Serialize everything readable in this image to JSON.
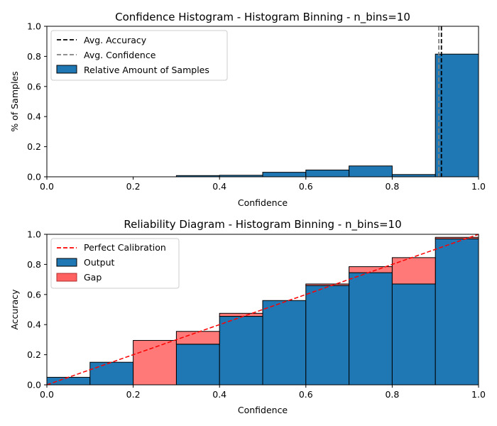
{
  "chart_data": [
    {
      "type": "bar",
      "title": "Confidence Histogram - Histogram Binning - n_bins=10",
      "xlabel": "Confidence",
      "ylabel": "% of Samples",
      "xlim": [
        0,
        1
      ],
      "ylim": [
        0,
        1
      ],
      "xticks": [
        "0.0",
        "0.2",
        "0.4",
        "0.6",
        "0.8",
        "1.0"
      ],
      "yticks": [
        "0.0",
        "0.2",
        "0.4",
        "0.6",
        "0.8",
        "1.0"
      ],
      "legend_position": "top-left",
      "bin_edges": [
        0.0,
        0.1,
        0.2,
        0.3,
        0.4,
        0.5,
        0.6,
        0.7,
        0.8,
        0.9,
        1.0
      ],
      "series": [
        {
          "name": "Relative Amount of Samples",
          "color": "#1f77b4",
          "values": [
            0.0,
            0.0,
            0.0,
            0.008,
            0.01,
            0.03,
            0.045,
            0.072,
            0.015,
            0.815
          ]
        }
      ],
      "vlines": [
        {
          "name": "Avg. Accuracy",
          "x": 0.914,
          "color": "#000000",
          "style": "dashed"
        },
        {
          "name": "Avg. Confidence",
          "x": 0.908,
          "color": "#808080",
          "style": "dashed"
        }
      ]
    },
    {
      "type": "bar",
      "title": "Reliability Diagram - Histogram Binning - n_bins=10",
      "xlabel": "Confidence",
      "ylabel": "Accuracy",
      "xlim": [
        0,
        1
      ],
      "ylim": [
        0,
        1
      ],
      "xticks": [
        "0.0",
        "0.2",
        "0.4",
        "0.6",
        "0.8",
        "1.0"
      ],
      "yticks": [
        "0.0",
        "0.2",
        "0.4",
        "0.6",
        "0.8",
        "1.0"
      ],
      "legend_position": "top-left",
      "bin_edges": [
        0.0,
        0.1,
        0.2,
        0.3,
        0.4,
        0.5,
        0.6,
        0.7,
        0.8,
        0.9,
        1.0
      ],
      "series": [
        {
          "name": "Output",
          "color": "#1f77b4",
          "values": [
            0.05,
            0.15,
            0.0,
            0.27,
            0.455,
            0.56,
            0.66,
            0.745,
            0.67,
            0.97
          ]
        },
        {
          "name": "Gap",
          "color": "#ff6161",
          "bin_confidence": [
            0.05,
            0.15,
            0.295,
            0.355,
            0.475,
            0.56,
            0.67,
            0.785,
            0.845,
            0.98
          ]
        }
      ],
      "reference_line": {
        "name": "Perfect Calibration",
        "from": [
          0,
          0
        ],
        "to": [
          1,
          1
        ],
        "color": "#ff0000",
        "style": "dashed"
      }
    }
  ]
}
